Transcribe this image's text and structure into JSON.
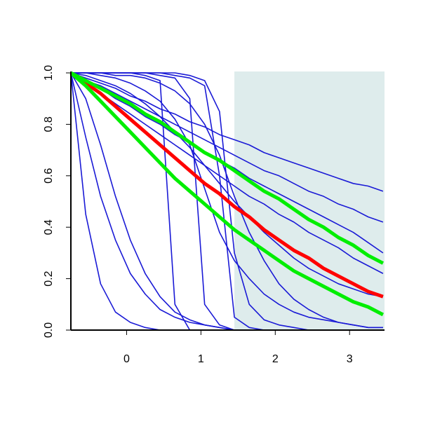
{
  "chart_data": {
    "type": "line",
    "xlim": [
      -0.75,
      3.47
    ],
    "ylim": [
      0,
      1
    ],
    "xticks": [
      0,
      1,
      2,
      3
    ],
    "yticks": [
      {
        "value": 0,
        "label": "0.0"
      },
      0.2,
      0.4,
      0.6,
      0.8,
      {
        "value": 1,
        "label": "1.0"
      }
    ],
    "shaded_region": {
      "xlim": [
        1.45,
        3.47
      ],
      "color": "#deecec"
    },
    "x": [
      -0.75,
      -0.55,
      -0.35,
      -0.15,
      0.05,
      0.25,
      0.45,
      0.65,
      0.85,
      1.05,
      1.25,
      1.45,
      1.65,
      1.85,
      2.05,
      2.25,
      2.45,
      2.65,
      2.85,
      3.05,
      3.25,
      3.45
    ],
    "series": [
      {
        "color": "#1a1ad6",
        "values": [
          1,
          0.98,
          0.96,
          0.94,
          0.91,
          0.89,
          0.86,
          0.84,
          0.81,
          0.79,
          0.76,
          0.74,
          0.72,
          0.69,
          0.67,
          0.65,
          0.63,
          0.61,
          0.59,
          0.57,
          0.56,
          0.54
        ]
      },
      {
        "color": "#1a1ad6",
        "values": [
          1,
          0.97,
          0.95,
          0.92,
          0.89,
          0.86,
          0.83,
          0.8,
          0.77,
          0.74,
          0.71,
          0.68,
          0.65,
          0.62,
          0.6,
          0.57,
          0.54,
          0.52,
          0.49,
          0.47,
          0.44,
          0.42
        ]
      },
      {
        "color": "#1a1ad6",
        "values": [
          1,
          0.97,
          0.94,
          0.9,
          0.87,
          0.83,
          0.8,
          0.76,
          0.73,
          0.69,
          0.66,
          0.63,
          0.59,
          0.56,
          0.53,
          0.5,
          0.47,
          0.44,
          0.41,
          0.38,
          0.34,
          0.3
        ]
      },
      {
        "color": "#1a1ad6",
        "values": [
          1,
          0.96,
          0.92,
          0.88,
          0.84,
          0.8,
          0.76,
          0.72,
          0.68,
          0.64,
          0.6,
          0.56,
          0.52,
          0.49,
          0.45,
          0.42,
          0.38,
          0.35,
          0.32,
          0.28,
          0.25,
          0.22
        ]
      },
      {
        "color": "#1a1ad6",
        "values": [
          1,
          0.45,
          0.18,
          0.07,
          0.03,
          0.01,
          0,
          0,
          0,
          0,
          0,
          0,
          0,
          0,
          0,
          0,
          0,
          0,
          0,
          0,
          0,
          0
        ]
      },
      {
        "color": "#1a1ad6",
        "values": [
          1,
          0.75,
          0.52,
          0.35,
          0.22,
          0.14,
          0.08,
          0.05,
          0.03,
          0.02,
          0.01,
          0,
          0,
          0,
          0,
          0,
          0,
          0,
          0,
          0,
          0,
          0
        ]
      },
      {
        "color": "#1a1ad6",
        "values": [
          1,
          0.9,
          0.72,
          0.52,
          0.35,
          0.22,
          0.13,
          0.07,
          0.04,
          0.02,
          0.01,
          0,
          0,
          0,
          0,
          0,
          0,
          0,
          0,
          0,
          0,
          0
        ]
      },
      {
        "color": "#1a1ad6",
        "values": [
          1,
          1,
          1,
          1,
          1,
          0.99,
          0.97,
          0.1,
          0,
          0,
          0,
          0,
          0,
          0,
          0,
          0,
          0,
          0,
          0,
          0,
          0,
          0
        ]
      },
      {
        "color": "#1a1ad6",
        "values": [
          1,
          1,
          1,
          1,
          1,
          1,
          0.99,
          0.98,
          0.9,
          0.1,
          0.02,
          0,
          0,
          0,
          0,
          0,
          0,
          0,
          0,
          0,
          0,
          0
        ]
      },
      {
        "color": "#1a1ad6",
        "values": [
          1,
          1,
          1,
          1,
          1,
          1,
          1,
          0.99,
          0.98,
          0.95,
          0.6,
          0.05,
          0.01,
          0,
          0,
          0,
          0,
          0,
          0,
          0,
          0,
          0
        ]
      },
      {
        "color": "#1a1ad6",
        "values": [
          1,
          1,
          0.99,
          0.98,
          0.96,
          0.93,
          0.89,
          0.82,
          0.72,
          0.55,
          0.38,
          0.27,
          0.2,
          0.14,
          0.1,
          0.07,
          0.05,
          0.04,
          0.03,
          0.02,
          0.01,
          0.01
        ]
      },
      {
        "color": "#1a1ad6",
        "values": [
          1,
          1,
          1,
          0.99,
          0.99,
          0.98,
          0.96,
          0.93,
          0.88,
          0.8,
          0.68,
          0.52,
          0.38,
          0.27,
          0.18,
          0.12,
          0.08,
          0.05,
          0.03,
          0.02,
          0.01,
          0.01
        ]
      },
      {
        "color": "#1a1ad6",
        "values": [
          1,
          1,
          1,
          1,
          1,
          1,
          1,
          1,
          0.99,
          0.97,
          0.85,
          0.3,
          0.1,
          0.04,
          0.02,
          0.01,
          0,
          0,
          0,
          0,
          0,
          0
        ]
      },
      {
        "color": "#1a1ad6",
        "values": [
          1,
          0.99,
          0.97,
          0.95,
          0.92,
          0.88,
          0.83,
          0.77,
          0.71,
          0.64,
          0.57,
          0.5,
          0.44,
          0.38,
          0.33,
          0.28,
          0.24,
          0.21,
          0.18,
          0.16,
          0.14,
          0.13
        ]
      },
      {
        "color": "#ff0000",
        "values": [
          1,
          0.96,
          0.92,
          0.87,
          0.82,
          0.77,
          0.72,
          0.67,
          0.62,
          0.57,
          0.53,
          0.48,
          0.44,
          0.39,
          0.35,
          0.31,
          0.28,
          0.24,
          0.21,
          0.18,
          0.15,
          0.13
        ]
      },
      {
        "color": "#00ee00",
        "values": [
          1,
          0.97,
          0.94,
          0.91,
          0.88,
          0.84,
          0.81,
          0.77,
          0.73,
          0.69,
          0.66,
          0.62,
          0.58,
          0.54,
          0.51,
          0.47,
          0.43,
          0.4,
          0.36,
          0.33,
          0.29,
          0.26
        ]
      },
      {
        "color": "#00ee00",
        "values": [
          1,
          0.95,
          0.89,
          0.83,
          0.77,
          0.71,
          0.65,
          0.59,
          0.54,
          0.49,
          0.44,
          0.39,
          0.35,
          0.31,
          0.27,
          0.23,
          0.2,
          0.17,
          0.14,
          0.11,
          0.09,
          0.06
        ]
      }
    ]
  }
}
